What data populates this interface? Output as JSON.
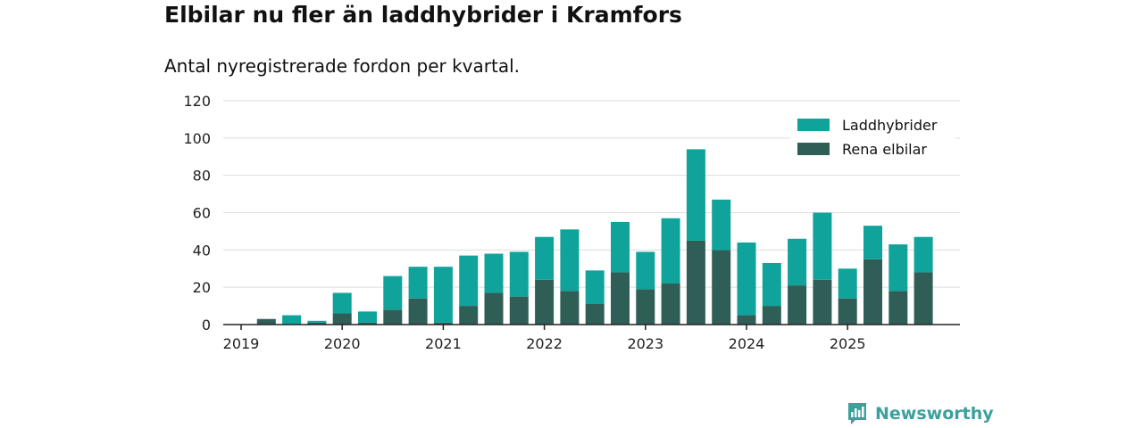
{
  "title": "Elbilar nu fler än laddhybrider i Kramfors",
  "subtitle": "Antal nyregistrerade fordon per kvartal.",
  "brand": {
    "name": "Newsworthy"
  },
  "colors": {
    "laddhybrider": "#0fa39b",
    "rena_elbilar": "#2f5e56",
    "grid": "#dddddd",
    "axis": "#222222"
  },
  "chart_data": {
    "type": "bar",
    "stacked": true,
    "title": "Elbilar nu fler än laddhybrider i Kramfors",
    "subtitle": "Antal nyregistrerade fordon per kvartal.",
    "ylim": [
      0,
      120
    ],
    "yticks": [
      0,
      20,
      40,
      60,
      80,
      100,
      120
    ],
    "x_tick_labels": [
      "2019",
      "2020",
      "2021",
      "2022",
      "2023",
      "2024",
      "2025"
    ],
    "legend_position": "top-right",
    "grid": true,
    "categories": [
      "2019Q1",
      "2019Q2",
      "2019Q3",
      "2019Q4",
      "2020Q1",
      "2020Q2",
      "2020Q3",
      "2020Q4",
      "2021Q1",
      "2021Q2",
      "2021Q3",
      "2021Q4",
      "2022Q1",
      "2022Q2",
      "2022Q3",
      "2022Q4",
      "2023Q1",
      "2023Q2",
      "2023Q3",
      "2023Q4",
      "2024Q1",
      "2024Q2",
      "2024Q3",
      "2024Q4",
      "2025Q1",
      "2025Q2",
      "2025Q3",
      "2025Q4"
    ],
    "series": [
      {
        "name": "Rena elbilar",
        "values": [
          0,
          3,
          0,
          1,
          6,
          1,
          8,
          14,
          1,
          10,
          17,
          15,
          24,
          18,
          11,
          28,
          19,
          22,
          45,
          40,
          5,
          10,
          21,
          24,
          14,
          35,
          18,
          28
        ]
      },
      {
        "name": "Laddhybrider",
        "values": [
          0,
          0,
          5,
          1,
          11,
          6,
          18,
          17,
          30,
          27,
          21,
          24,
          23,
          33,
          18,
          27,
          20,
          35,
          49,
          27,
          39,
          23,
          25,
          36,
          16,
          18,
          25,
          19
        ]
      }
    ]
  }
}
